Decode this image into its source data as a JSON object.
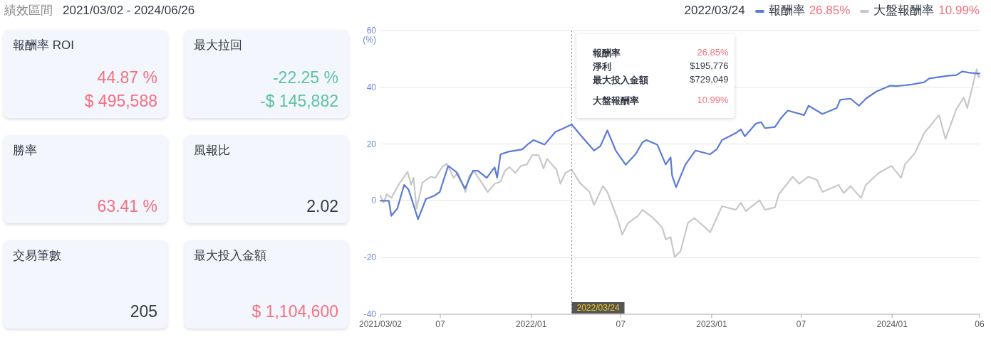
{
  "chart_data": [
    {
      "type": "other",
      "title": "績效區間",
      "subtitle": "2021/03/02 - 2024/06/26"
    },
    {
      "type": "other",
      "title": "報酬率 ROI",
      "annotations": [
        "44.87 %",
        "$ 495,588"
      ],
      "colors": [
        "#f5707d",
        "#f5707d"
      ]
    },
    {
      "type": "other",
      "title": "最大拉回",
      "annotations": [
        "-22.25 %",
        "-$ 145,882"
      ],
      "colors": [
        "#5cc49f",
        "#5cc49f"
      ]
    },
    {
      "type": "other",
      "title": "勝率",
      "annotations": [
        "63.41 %"
      ],
      "colors": [
        "#f5707d"
      ]
    },
    {
      "type": "other",
      "title": "風報比",
      "annotations": [
        "2.02"
      ],
      "colors": [
        "#333a45"
      ]
    },
    {
      "type": "other",
      "title": "交易筆數",
      "annotations": [
        "205"
      ],
      "colors": [
        "#333a45"
      ]
    },
    {
      "type": "other",
      "title": "最大投入金額",
      "annotations": [
        "$ 1,104,600"
      ],
      "colors": [
        "#f5707d"
      ]
    },
    {
      "type": "line",
      "ylabel": "(%)",
      "xlim": [
        "2021-03-02",
        "2024-06-26"
      ],
      "ylim": [
        -40,
        60
      ],
      "yticks": [
        -40,
        -20,
        0,
        20,
        40,
        60
      ],
      "xticks": [
        {
          "value": "2021-03-02",
          "label": "2021/03/02"
        },
        {
          "value": "2021-07-01",
          "label": "07"
        },
        {
          "value": "2022-01-01",
          "label": "2022/01"
        },
        {
          "value": "2022-07-01",
          "label": "07"
        },
        {
          "value": "2023-01-01",
          "label": "2023/01"
        },
        {
          "value": "2023-07-01",
          "label": "07"
        },
        {
          "value": "2024-01-01",
          "label": "2024/01"
        },
        {
          "value": "2024-06-26",
          "label": "06"
        }
      ],
      "grid": "y",
      "legend": "top right",
      "line_style": "solid",
      "marker": "none",
      "ref_lines": [
        {
          "axis": "x",
          "value": "2022-03-24",
          "label": "2022/03/24",
          "color": "#888888",
          "line_style": "dotted"
        }
      ],
      "annotations": [
        "26.85%",
        "10.99%",
        "淨利",
        "$195,776",
        "最大投入金額",
        "$729,049"
      ],
      "series": [
        {
          "name": "報酬率",
          "color": "#5b7bd9",
          "x": [
            "2021-03-02",
            "2021-03-19",
            "2021-03-24",
            "2021-04-05",
            "2021-04-19",
            "2021-04-28",
            "2021-05-08",
            "2021-05-17",
            "2021-06-02",
            "2021-06-19",
            "2021-06-30",
            "2021-07-17",
            "2021-08-02",
            "2021-08-20",
            "2021-09-05",
            "2021-09-15",
            "2021-10-03",
            "2021-10-19",
            "2021-10-24",
            "2021-10-31",
            "2021-11-16",
            "2021-12-14",
            "2021-12-27",
            "2022-01-06",
            "2022-01-28",
            "2022-02-19",
            "2022-03-08",
            "2022-03-24",
            "2022-04-11",
            "2022-05-08",
            "2022-05-21",
            "2022-06-04",
            "2022-06-21",
            "2022-07-11",
            "2022-07-31",
            "2022-08-14",
            "2022-08-22",
            "2022-09-13",
            "2022-09-30",
            "2022-10-10",
            "2022-10-13",
            "2022-10-21",
            "2022-11-09",
            "2022-11-29",
            "2022-12-29",
            "2023-01-11",
            "2023-01-22",
            "2023-02-19",
            "2023-03-01",
            "2023-03-09",
            "2023-04-01",
            "2023-04-11",
            "2023-04-19",
            "2023-05-09",
            "2023-05-22",
            "2023-06-04",
            "2023-07-07",
            "2023-07-16",
            "2023-08-13",
            "2023-09-11",
            "2023-09-18",
            "2023-10-09",
            "2023-10-26",
            "2023-11-09",
            "2023-11-30",
            "2023-12-28",
            "2024-01-09",
            "2024-02-06",
            "2024-03-06",
            "2024-03-16",
            "2024-04-25",
            "2024-05-10",
            "2024-05-22",
            "2024-06-04",
            "2024-06-24",
            "2024-06-26"
          ],
          "values": [
            0,
            0,
            -5.3,
            -2.8,
            5.6,
            3.9,
            -1.5,
            -6.5,
            0.6,
            1.8,
            3.1,
            12.3,
            10.2,
            4.3,
            10.6,
            10.6,
            8.1,
            11.8,
            8.1,
            16.4,
            17.3,
            18.1,
            20.2,
            21.4,
            19.8,
            24.3,
            25.6,
            26.9,
            23.1,
            17.7,
            19.3,
            24.8,
            17.7,
            12.7,
            16.4,
            20.6,
            21.4,
            19.8,
            12.8,
            15.3,
            8.9,
            4.8,
            12.8,
            17.7,
            16.4,
            18.1,
            21.4,
            23.9,
            25.2,
            22.7,
            27.3,
            27.7,
            25.6,
            26.0,
            29.3,
            31.8,
            30.2,
            33.5,
            30.6,
            32.7,
            35.6,
            36.0,
            33.5,
            36.0,
            38.5,
            40.6,
            40.4,
            40.9,
            41.8,
            43.1,
            44.1,
            44.3,
            45.6,
            45.2,
            44.8,
            44.9
          ]
        },
        {
          "name": "大盤報酬率",
          "color": "#c8c8c8",
          "x": [
            "2021-03-02",
            "2021-03-08",
            "2021-03-15",
            "2021-03-24",
            "2021-04-09",
            "2021-04-26",
            "2021-05-03",
            "2021-05-08",
            "2021-05-14",
            "2021-05-26",
            "2021-06-12",
            "2021-06-21",
            "2021-07-05",
            "2021-07-14",
            "2021-07-28",
            "2021-08-06",
            "2021-08-21",
            "2021-08-29",
            "2021-09-08",
            "2021-09-24",
            "2021-10-05",
            "2021-10-19",
            "2021-10-31",
            "2021-11-09",
            "2021-11-18",
            "2021-11-30",
            "2021-12-11",
            "2021-12-23",
            "2022-01-03",
            "2022-01-16",
            "2022-01-26",
            "2022-02-02",
            "2022-02-21",
            "2022-03-01",
            "2022-03-11",
            "2022-03-24",
            "2022-04-09",
            "2022-04-29",
            "2022-05-08",
            "2022-05-26",
            "2022-06-04",
            "2022-06-24",
            "2022-07-04",
            "2022-07-16",
            "2022-08-05",
            "2022-08-14",
            "2022-09-05",
            "2022-09-23",
            "2022-09-30",
            "2022-10-10",
            "2022-10-18",
            "2022-10-30",
            "2022-11-14",
            "2022-11-27",
            "2022-12-19",
            "2022-12-29",
            "2023-01-22",
            "2023-02-19",
            "2023-03-01",
            "2023-03-11",
            "2023-04-08",
            "2023-04-19",
            "2023-05-09",
            "2023-05-17",
            "2023-06-14",
            "2023-06-27",
            "2023-07-16",
            "2023-08-02",
            "2023-08-13",
            "2023-09-15",
            "2023-09-25",
            "2023-10-09",
            "2023-10-30",
            "2023-11-09",
            "2023-12-05",
            "2023-12-31",
            "2024-01-19",
            "2024-01-27",
            "2024-02-16",
            "2024-03-06",
            "2024-04-05",
            "2024-04-18",
            "2024-05-10",
            "2024-05-25",
            "2024-06-01",
            "2024-06-17",
            "2024-06-20",
            "2024-06-24",
            "2024-06-26"
          ],
          "values": [
            1.8,
            -0.7,
            2.3,
            1.0,
            6.0,
            10.2,
            5.6,
            8.1,
            -2.8,
            6.4,
            8.5,
            8.1,
            11.9,
            13.1,
            8.1,
            9.8,
            3.1,
            8.9,
            10.2,
            6.0,
            3.1,
            6.0,
            6.8,
            10.6,
            11.9,
            9.8,
            12.3,
            12.8,
            16.1,
            16.1,
            11.4,
            14.8,
            11.0,
            6.0,
            9.8,
            11.0,
            6.4,
            3.1,
            -1.5,
            5.2,
            3.1,
            -6.1,
            -11.9,
            -7.8,
            -5.3,
            -3.2,
            -6.1,
            -9.4,
            -13.6,
            -12.8,
            -19.8,
            -17.8,
            -7.8,
            -6.1,
            -9.4,
            -11.1,
            -1.9,
            -3.2,
            -0.7,
            -3.6,
            0.2,
            -3.2,
            -2.3,
            2.3,
            8.5,
            6.0,
            8.5,
            7.3,
            3.1,
            5.6,
            2.7,
            5.2,
            1.0,
            5.6,
            9.8,
            12.3,
            8.1,
            12.8,
            16.8,
            23.9,
            30.2,
            21.8,
            32.3,
            36.4,
            32.7,
            44.3,
            46.4,
            43.5,
            44.0
          ]
        }
      ]
    }
  ]
}
